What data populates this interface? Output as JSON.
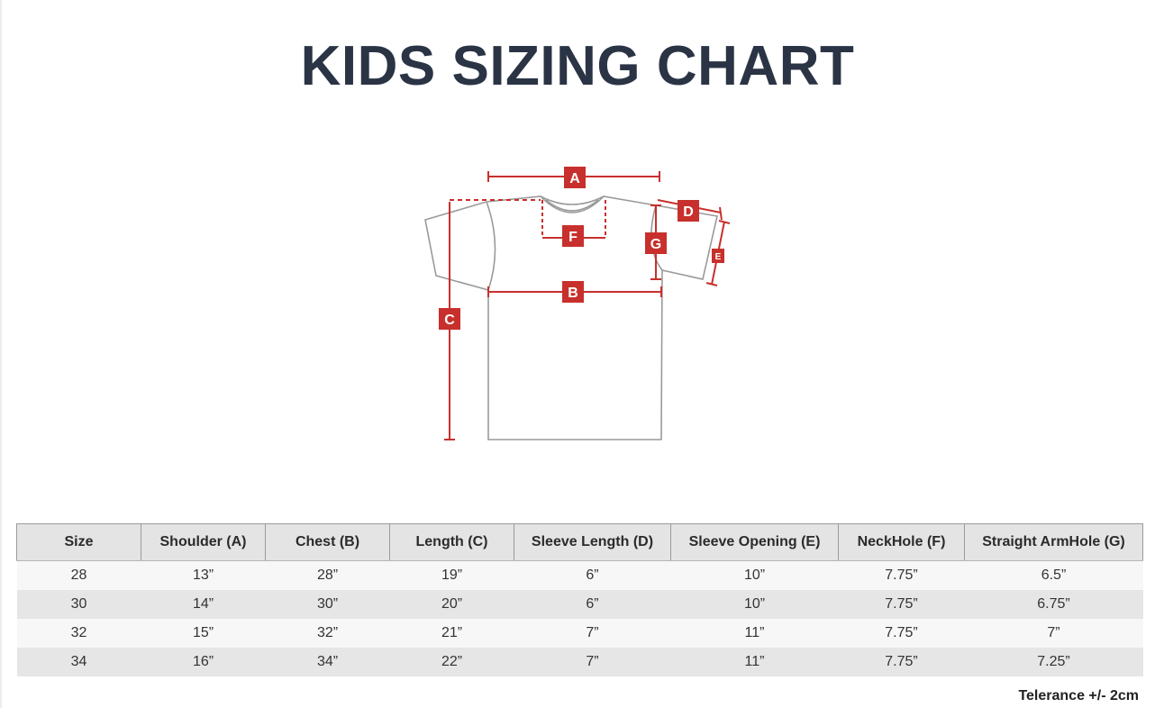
{
  "title": "KIDS SIZING CHART",
  "diagram": {
    "labels": {
      "a": "A",
      "b": "B",
      "c": "C",
      "d": "D",
      "e": "E",
      "f": "F",
      "g": "G"
    },
    "marker_color": "#c7302c",
    "outline_color": "#9a9a9a"
  },
  "table": {
    "headers": [
      "Size",
      "Shoulder (A)",
      "Chest (B)",
      "Length (C)",
      "Sleeve Length (D)",
      "Sleeve Opening (E)",
      "NeckHole (F)",
      "Straight ArmHole (G)"
    ],
    "rows": [
      [
        "28",
        "13”",
        "28”",
        "19”",
        "6”",
        "10”",
        "7.75”",
        "6.5”"
      ],
      [
        "30",
        "14”",
        "30”",
        "20”",
        "6”",
        "10”",
        "7.75”",
        "6.75”"
      ],
      [
        "32",
        "15”",
        "32”",
        "21”",
        "7”",
        "11”",
        "7.75”",
        "7”"
      ],
      [
        "34",
        "16”",
        "34”",
        "22”",
        "7”",
        "11”",
        "7.75”",
        "7.25”"
      ]
    ]
  },
  "tolerance": "Telerance +/- 2cm"
}
